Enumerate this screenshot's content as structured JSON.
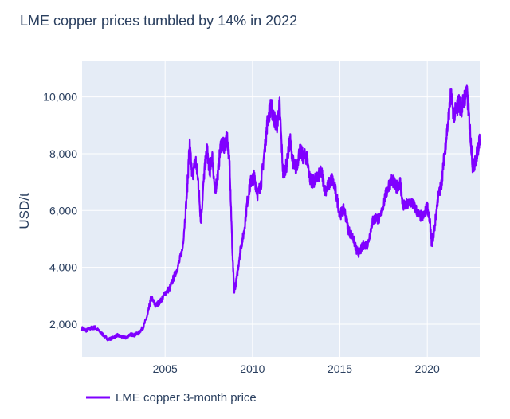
{
  "chart_data": {
    "type": "line",
    "title": "LME copper prices tumbled by 14% in 2022",
    "ylabel": "USD/t",
    "xlabel": "",
    "x_start": 2000.25,
    "x_end": 2023.0,
    "xlim": [
      2000.25,
      2023.0
    ],
    "ylim": [
      850,
      11250
    ],
    "x_ticks": [
      2005,
      2010,
      2015,
      2020
    ],
    "y_ticks": [
      2000,
      4000,
      6000,
      8000,
      10000
    ],
    "y_tick_labels": [
      "2,000",
      "4,000",
      "6,000",
      "8,000",
      "10,000"
    ],
    "x_tick_labels": [
      "2005",
      "2010",
      "2015",
      "2020"
    ],
    "grid": true,
    "legend_position": "bottom-left",
    "colors": {
      "plot_bg": "#e5ecf6",
      "grid": "#ffffff",
      "line": "#7f00ff",
      "text": "#2a3f5f"
    },
    "series": [
      {
        "name": "LME copper 3-month price",
        "points": [
          [
            2000.25,
            1850
          ],
          [
            2000.5,
            1780
          ],
          [
            2000.75,
            1860
          ],
          [
            2001.0,
            1880
          ],
          [
            2001.25,
            1740
          ],
          [
            2001.5,
            1600
          ],
          [
            2001.75,
            1460
          ],
          [
            2002.0,
            1520
          ],
          [
            2002.25,
            1610
          ],
          [
            2002.5,
            1560
          ],
          [
            2002.75,
            1520
          ],
          [
            2003.0,
            1640
          ],
          [
            2003.25,
            1620
          ],
          [
            2003.5,
            1700
          ],
          [
            2003.75,
            1900
          ],
          [
            2004.0,
            2320
          ],
          [
            2004.2,
            2950
          ],
          [
            2004.45,
            2650
          ],
          [
            2004.75,
            2820
          ],
          [
            2005.0,
            3100
          ],
          [
            2005.25,
            3250
          ],
          [
            2005.5,
            3650
          ],
          [
            2005.75,
            4050
          ],
          [
            2006.0,
            4650
          ],
          [
            2006.25,
            6600
          ],
          [
            2006.4,
            8350
          ],
          [
            2006.55,
            7200
          ],
          [
            2006.75,
            7800
          ],
          [
            2006.9,
            7000
          ],
          [
            2007.05,
            5600
          ],
          [
            2007.25,
            7400
          ],
          [
            2007.4,
            8150
          ],
          [
            2007.55,
            7350
          ],
          [
            2007.7,
            7900
          ],
          [
            2007.85,
            6650
          ],
          [
            2008.0,
            7200
          ],
          [
            2008.2,
            8400
          ],
          [
            2008.4,
            8200
          ],
          [
            2008.55,
            8600
          ],
          [
            2008.7,
            7600
          ],
          [
            2008.85,
            4500
          ],
          [
            2008.95,
            3150
          ],
          [
            2009.1,
            3600
          ],
          [
            2009.3,
            4600
          ],
          [
            2009.5,
            5200
          ],
          [
            2009.7,
            6300
          ],
          [
            2009.9,
            7000
          ],
          [
            2010.1,
            7200
          ],
          [
            2010.3,
            6550
          ],
          [
            2010.5,
            7000
          ],
          [
            2010.7,
            8200
          ],
          [
            2010.85,
            9100
          ],
          [
            2011.05,
            9700
          ],
          [
            2011.2,
            9300
          ],
          [
            2011.4,
            9000
          ],
          [
            2011.55,
            9700
          ],
          [
            2011.75,
            7300
          ],
          [
            2011.95,
            7600
          ],
          [
            2012.15,
            8500
          ],
          [
            2012.35,
            7600
          ],
          [
            2012.5,
            7500
          ],
          [
            2012.7,
            8100
          ],
          [
            2012.9,
            7900
          ],
          [
            2013.1,
            7900
          ],
          [
            2013.3,
            7100
          ],
          [
            2013.5,
            7000
          ],
          [
            2013.75,
            7200
          ],
          [
            2013.95,
            7350
          ],
          [
            2014.15,
            6700
          ],
          [
            2014.35,
            6900
          ],
          [
            2014.55,
            7100
          ],
          [
            2014.75,
            6700
          ],
          [
            2015.0,
            5850
          ],
          [
            2015.25,
            6050
          ],
          [
            2015.5,
            5300
          ],
          [
            2015.75,
            5050
          ],
          [
            2015.95,
            4600
          ],
          [
            2016.1,
            4500
          ],
          [
            2016.35,
            4800
          ],
          [
            2016.6,
            4800
          ],
          [
            2016.85,
            5600
          ],
          [
            2017.05,
            5750
          ],
          [
            2017.3,
            5700
          ],
          [
            2017.55,
            6400
          ],
          [
            2017.8,
            6900
          ],
          [
            2018.0,
            7100
          ],
          [
            2018.2,
            6800
          ],
          [
            2018.45,
            7000
          ],
          [
            2018.6,
            6150
          ],
          [
            2018.85,
            6200
          ],
          [
            2019.1,
            6300
          ],
          [
            2019.3,
            6100
          ],
          [
            2019.55,
            5800
          ],
          [
            2019.8,
            5800
          ],
          [
            2020.0,
            6150
          ],
          [
            2020.15,
            5600
          ],
          [
            2020.25,
            4800
          ],
          [
            2020.4,
            5300
          ],
          [
            2020.6,
            6400
          ],
          [
            2020.8,
            6900
          ],
          [
            2020.95,
            7800
          ],
          [
            2021.15,
            8900
          ],
          [
            2021.35,
            10100
          ],
          [
            2021.5,
            9400
          ],
          [
            2021.65,
            9500
          ],
          [
            2021.8,
            9800
          ],
          [
            2021.95,
            9600
          ],
          [
            2022.1,
            9900
          ],
          [
            2022.25,
            10200
          ],
          [
            2022.35,
            9600
          ],
          [
            2022.5,
            8400
          ],
          [
            2022.6,
            7500
          ],
          [
            2022.75,
            7700
          ],
          [
            2022.9,
            8200
          ],
          [
            2023.0,
            8500
          ]
        ]
      }
    ]
  }
}
